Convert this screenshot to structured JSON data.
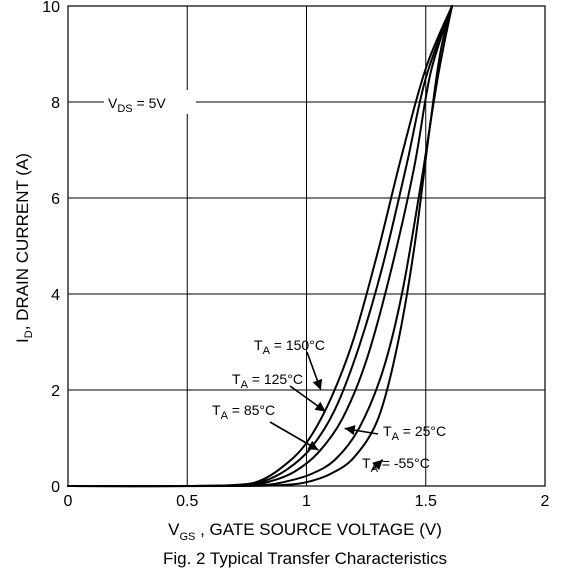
{
  "chart_data": {
    "type": "line",
    "title": "Fig. 2 Typical Transfer Characteristics",
    "xlabel": {
      "main": "V",
      "sub": "GS",
      "rest": " , GATE SOURCE VOLTAGE (V)"
    },
    "ylabel": {
      "main": "I",
      "sub": "D",
      "rest": ", DRAIN CURRENT (A)"
    },
    "xlim": [
      0,
      2
    ],
    "ylim": [
      0,
      10
    ],
    "xticks": [
      "0",
      "0.5",
      "1",
      "1.5",
      "2"
    ],
    "yticks": [
      "0",
      "2",
      "4",
      "6",
      "8",
      "10"
    ],
    "grid": true,
    "condition": {
      "main": "V",
      "sub": "DS",
      "rest": " = 5V"
    },
    "series": [
      {
        "name": "T_A = 150°C",
        "x": [
          0,
          0.5,
          0.7,
          0.8,
          0.9,
          1.0,
          1.1,
          1.2,
          1.3,
          1.4,
          1.5,
          1.61
        ],
        "y": [
          0,
          0,
          0.02,
          0.1,
          0.4,
          0.9,
          1.8,
          3.1,
          4.9,
          6.9,
          8.7,
          10
        ]
      },
      {
        "name": "T_A = 125°C",
        "x": [
          0,
          0.5,
          0.72,
          0.82,
          0.92,
          1.02,
          1.12,
          1.22,
          1.32,
          1.42,
          1.5,
          1.61
        ],
        "y": [
          0,
          0,
          0.02,
          0.1,
          0.35,
          0.8,
          1.6,
          2.9,
          4.6,
          6.7,
          8.5,
          10
        ]
      },
      {
        "name": "T_A = 85°C",
        "x": [
          0,
          0.5,
          0.75,
          0.85,
          0.95,
          1.05,
          1.15,
          1.25,
          1.35,
          1.45,
          1.52,
          1.61
        ],
        "y": [
          0,
          0,
          0.02,
          0.1,
          0.3,
          0.7,
          1.4,
          2.6,
          4.4,
          6.6,
          8.6,
          10
        ]
      },
      {
        "name": "T_A = 25°C",
        "x": [
          0,
          0.6,
          0.82,
          0.92,
          1.02,
          1.12,
          1.22,
          1.32,
          1.4,
          1.48,
          1.55,
          1.61
        ],
        "y": [
          0,
          0,
          0.02,
          0.1,
          0.25,
          0.55,
          1.2,
          2.4,
          4.0,
          6.3,
          8.5,
          10
        ]
      },
      {
        "name": "T_A = -55°C",
        "x": [
          0,
          0.7,
          0.9,
          1.0,
          1.1,
          1.2,
          1.3,
          1.38,
          1.45,
          1.51,
          1.56,
          1.61
        ],
        "y": [
          0,
          0,
          0.02,
          0.08,
          0.25,
          0.6,
          1.4,
          2.9,
          4.9,
          7.2,
          9.0,
          10
        ]
      }
    ]
  }
}
